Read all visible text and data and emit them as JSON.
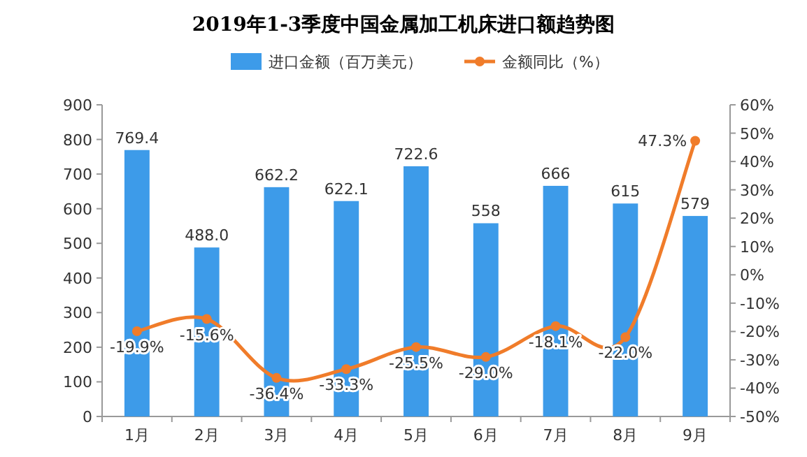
{
  "chart_data": {
    "type": "bar",
    "title": "2019年1-3季度中国金属加工机床进口额趋势图",
    "categories": [
      "1月",
      "2月",
      "3月",
      "4月",
      "5月",
      "6月",
      "7月",
      "8月",
      "9月"
    ],
    "series": [
      {
        "name": "进口金额（百万美元）",
        "color": "#3d9be9",
        "values": [
          769.4,
          488.0,
          662.2,
          622.1,
          722.6,
          558,
          666,
          615,
          579
        ],
        "value_labels": [
          "769.4",
          "488.0",
          "662.2",
          "622.1",
          "722.6",
          "558",
          "666",
          "615",
          "579"
        ]
      },
      {
        "name": "金额同比（%）",
        "type": "line",
        "axis": "y2",
        "color": "#f07c2a",
        "marker": "circle",
        "values": [
          -19.9,
          -15.6,
          -36.4,
          -33.3,
          -25.5,
          -29.0,
          -18.1,
          -22.0,
          47.3
        ],
        "value_labels": [
          "-19.9%",
          "-15.6%",
          "-36.4%",
          "-33.3%",
          "-25.5%",
          "-29.0%",
          "-18.1%",
          "-22.0%",
          "47.3%"
        ]
      }
    ],
    "ylim": [
      0,
      900
    ],
    "yticks": [
      0,
      100,
      200,
      300,
      400,
      500,
      600,
      700,
      800,
      900
    ],
    "y2lim": [
      -50,
      60
    ],
    "y2ticks": [
      {
        "value": -50,
        "label": "-50%"
      },
      {
        "value": -40,
        "label": "-40%"
      },
      {
        "value": -30,
        "label": "-30%"
      },
      {
        "value": -20,
        "label": "-20%"
      },
      {
        "value": -10,
        "label": "-10%"
      },
      {
        "value": 0,
        "label": "0%"
      },
      {
        "value": 10,
        "label": "10%"
      },
      {
        "value": 20,
        "label": "20%"
      },
      {
        "value": 30,
        "label": "30%"
      },
      {
        "value": 40,
        "label": "40%"
      },
      {
        "value": 50,
        "label": "50%"
      },
      {
        "value": 60,
        "label": "60%"
      }
    ],
    "legend": "top",
    "grid": false
  }
}
